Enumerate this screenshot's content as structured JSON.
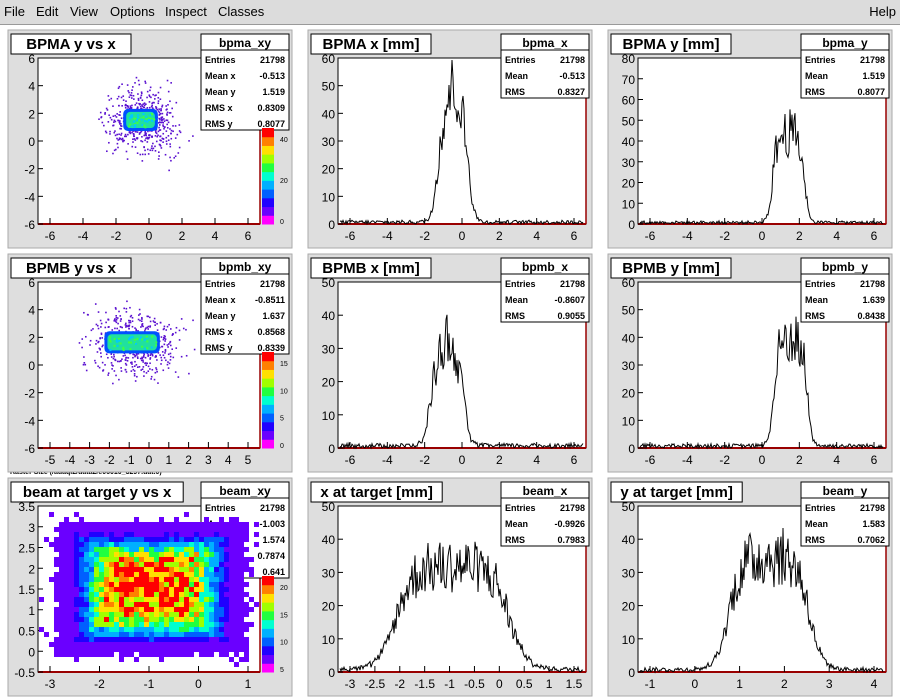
{
  "menu": {
    "items": [
      "File",
      "Edit",
      "View",
      "Options",
      "Inspect",
      "Classes"
    ],
    "help": "Help"
  },
  "caption": "Raster Size (/adaql2/data2/e06010_3297.dat.0)",
  "colors": {
    "frame": "#dcdcdc",
    "hist": "#000000",
    "axis_x": "#990000",
    "panel": "#d9d9d9"
  },
  "panels": [
    {
      "id": "bpma_xy",
      "kind": "scatter2d",
      "title": "BPMA y vs x",
      "stats": {
        "name": "bpma_xy",
        "rows": [
          [
            "Entries",
            "21798"
          ],
          [
            "Mean x",
            "-0.513"
          ],
          [
            "Mean y",
            "1.519"
          ],
          [
            "RMS x",
            "0.8309"
          ],
          [
            "RMS y",
            "0.8077"
          ]
        ]
      },
      "xticks": [
        "-6",
        "-4",
        "-2",
        "0",
        "2",
        "4",
        "6"
      ],
      "yticks": [
        "6",
        "4",
        "2",
        "0",
        "-2",
        "-4",
        "-6"
      ],
      "zticks": [
        "40",
        "20",
        "0"
      ],
      "core": {
        "cx": -0.513,
        "cy": 1.519,
        "w": 2.1,
        "h": 1.6
      }
    },
    {
      "id": "bpma_x",
      "kind": "hist1d",
      "title": "BPMA x [mm]",
      "stats": {
        "name": "bpma_x",
        "rows": [
          [
            "Entries",
            "21798"
          ],
          [
            "Mean",
            "-0.513"
          ],
          [
            "RMS",
            "0.8327"
          ]
        ]
      },
      "xticks": [
        "-6",
        "-4",
        "-2",
        "0",
        "2",
        "4",
        "6"
      ],
      "yticks": [
        "60",
        "50",
        "40",
        "30",
        "20",
        "10",
        "0"
      ],
      "chart_data": {
        "type": "histogram",
        "xlim": [
          -7,
          7
        ],
        "ylim": [
          0,
          70
        ],
        "mean": -0.513,
        "rms": 0.8327,
        "peak": 50,
        "shape": "twin"
      }
    },
    {
      "id": "bpma_y",
      "kind": "hist1d",
      "title": "BPMA y [mm]",
      "stats": {
        "name": "bpma_y",
        "rows": [
          [
            "Entries",
            "21798"
          ],
          [
            "Mean",
            "1.519"
          ],
          [
            "RMS",
            "0.8077"
          ]
        ]
      },
      "xticks": [
        "-6",
        "-4",
        "-2",
        "0",
        "2",
        "4",
        "6"
      ],
      "yticks": [
        "80",
        "70",
        "60",
        "50",
        "40",
        "30",
        "20",
        "10",
        "0"
      ],
      "chart_data": {
        "type": "histogram",
        "xlim": [
          -7,
          7
        ],
        "ylim": [
          0,
          85
        ],
        "mean": 1.519,
        "rms": 0.8077,
        "peak": 45,
        "shape": "single"
      }
    },
    {
      "id": "bpmb_xy",
      "kind": "scatter2d",
      "title": "BPMB y vs x",
      "stats": {
        "name": "bpmb_xy",
        "rows": [
          [
            "Entries",
            "21798"
          ],
          [
            "Mean x",
            "-0.8511"
          ],
          [
            "Mean y",
            "1.637"
          ],
          [
            "RMS x",
            "0.8568"
          ],
          [
            "RMS y",
            "0.8339"
          ]
        ]
      },
      "xticks": [
        "-5",
        "-4",
        "-3",
        "-2",
        "-1",
        "0",
        "1",
        "2",
        "3",
        "4",
        "5"
      ],
      "yticks": [
        "6",
        "4",
        "2",
        "0",
        "-2",
        "-4",
        "-6"
      ],
      "zticks": [
        "15",
        "10",
        "5",
        "0"
      ],
      "core": {
        "cx": -0.8511,
        "cy": 1.637,
        "w": 2.8,
        "h": 1.6
      }
    },
    {
      "id": "bpmb_x",
      "kind": "hist1d",
      "title": "BPMB x [mm]",
      "stats": {
        "name": "bpmb_x",
        "rows": [
          [
            "Entries",
            "21798"
          ],
          [
            "Mean",
            "-0.8607"
          ],
          [
            "RMS",
            "0.9055"
          ]
        ]
      },
      "xticks": [
        "-6",
        "-4",
        "-2",
        "0",
        "2",
        "4",
        "6"
      ],
      "yticks": [
        "50",
        "40",
        "30",
        "20",
        "10",
        "0"
      ],
      "chart_data": {
        "type": "histogram",
        "xlim": [
          -7,
          7
        ],
        "ylim": [
          0,
          57
        ],
        "mean": -0.8607,
        "rms": 0.9055,
        "peak": 32,
        "shape": "twin"
      }
    },
    {
      "id": "bpmb_y",
      "kind": "hist1d",
      "title": "BPMB y [mm]",
      "stats": {
        "name": "bpmb_y",
        "rows": [
          [
            "Entries",
            "21798"
          ],
          [
            "Mean",
            "1.639"
          ],
          [
            "RMS",
            "0.8438"
          ]
        ]
      },
      "xticks": [
        "-6",
        "-4",
        "-2",
        "0",
        "2",
        "4",
        "6"
      ],
      "yticks": [
        "60",
        "50",
        "40",
        "30",
        "20",
        "10",
        "0"
      ],
      "chart_data": {
        "type": "histogram",
        "xlim": [
          -7,
          7
        ],
        "ylim": [
          0,
          63
        ],
        "mean": 1.639,
        "rms": 0.8438,
        "peak": 40,
        "shape": "single"
      }
    },
    {
      "id": "beam_xy",
      "kind": "heat2d",
      "title": "beam at target y vs x",
      "stats": {
        "name": "beam_xy",
        "rows": [
          [
            "Entries",
            "21798"
          ],
          [
            "Mean x",
            "-1.003"
          ],
          [
            "Mean y",
            "1.574"
          ],
          [
            "RMS x",
            "0.7874"
          ],
          [
            "RMS y",
            "0.641"
          ]
        ]
      },
      "xticks": [
        "-3",
        "-2",
        "-1",
        "0",
        "1"
      ],
      "yticks": [
        "3.5",
        "3",
        "2.5",
        "2",
        "1.5",
        "1",
        "0.5",
        "0",
        "-0.5"
      ],
      "zticks": [
        "20",
        "15",
        "10",
        "5"
      ],
      "core": {
        "cx": -1.003,
        "cy": 1.574,
        "w": 2.4,
        "h": 2.0
      }
    },
    {
      "id": "beam_x",
      "kind": "hist1d",
      "title": "x at target [mm]",
      "stats": {
        "name": "beam_x",
        "rows": [
          [
            "Entries",
            "21798"
          ],
          [
            "Mean",
            "-0.9926"
          ],
          [
            "RMS",
            "0.7983"
          ]
        ]
      },
      "xticks": [
        "-3",
        "-2.5",
        "-2",
        "-1.5",
        "-1",
        "-0.5",
        "0",
        "0.5",
        "1",
        "1.5"
      ],
      "yticks": [
        "50",
        "40",
        "30",
        "20",
        "10",
        "0"
      ],
      "chart_data": {
        "type": "histogram",
        "xlim": [
          -3.3,
          1.7
        ],
        "ylim": [
          0,
          54
        ],
        "mean": -0.9926,
        "rms": 0.7983,
        "peak": 33,
        "shape": "plateau"
      }
    },
    {
      "id": "beam_y",
      "kind": "hist1d",
      "title": "y at target [mm]",
      "stats": {
        "name": "beam_y",
        "rows": [
          [
            "Entries",
            "21798"
          ],
          [
            "Mean",
            "1.583"
          ],
          [
            "RMS",
            "0.7062"
          ]
        ]
      },
      "xticks": [
        "-1",
        "0",
        "1",
        "2",
        "3",
        "4"
      ],
      "yticks": [
        "50",
        "40",
        "30",
        "20",
        "10",
        "0"
      ],
      "chart_data": {
        "type": "histogram",
        "xlim": [
          -1.7,
          4.5
        ],
        "ylim": [
          0,
          57
        ],
        "mean": 1.583,
        "rms": 0.7062,
        "peak": 38,
        "shape": "plateau"
      }
    }
  ]
}
